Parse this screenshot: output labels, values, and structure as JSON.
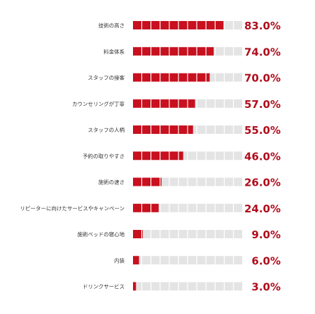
{
  "chart_data": {
    "type": "bar",
    "segments_per_bar": 12,
    "colors": {
      "filled": "#c8101f",
      "empty": "#e4e4e4",
      "value_text": "#b00d1c",
      "label_text": "#333333"
    },
    "categories": [
      "技術の高さ",
      "料金体系",
      "スタッフの接客",
      "カウンセリングが丁寧",
      "スタッフの人柄",
      "予約の取りやすさ",
      "施術の速さ",
      "リピーターに向けたサービスやキャンペーン",
      "施術ベッドの寝心地",
      "内装",
      "ドリンクサービス"
    ],
    "values": [
      83.0,
      74.0,
      70.0,
      57.0,
      55.0,
      46.0,
      26.0,
      24.0,
      9.0,
      6.0,
      3.0
    ],
    "value_labels": [
      "83.0%",
      "74.0%",
      "70.0%",
      "57.0%",
      "55.0%",
      "46.0%",
      "26.0%",
      "24.0%",
      "9.0%",
      "6.0%",
      "3.0%"
    ],
    "xlim": [
      0,
      100
    ]
  }
}
